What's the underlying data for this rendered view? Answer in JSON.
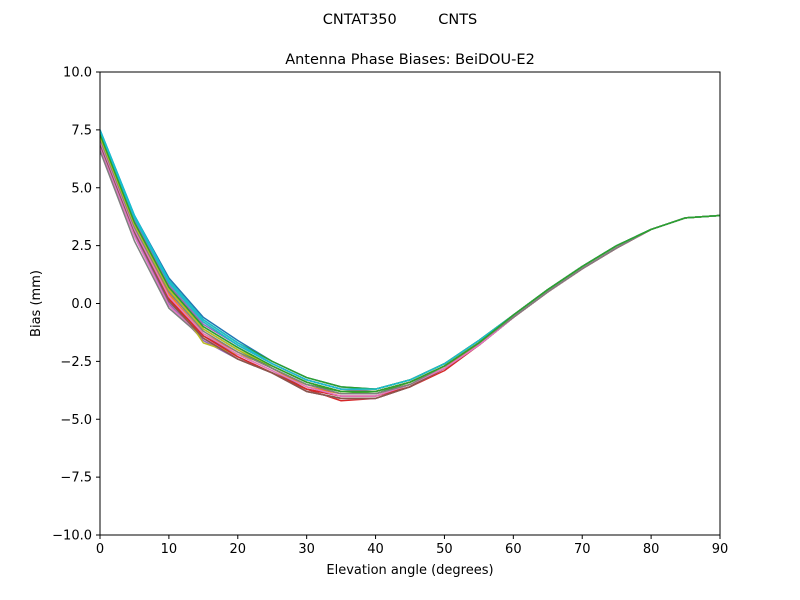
{
  "chart_data": {
    "type": "line",
    "suptitle": "CNTAT350         CNTS",
    "title": "Antenna Phase Biases: BeiDOU-E2",
    "xlabel": "Elevation angle (degrees)",
    "ylabel": "Bias (mm)",
    "xlim": [
      0,
      90
    ],
    "ylim": [
      -10,
      10
    ],
    "xticks": [
      0,
      10,
      20,
      30,
      40,
      50,
      60,
      70,
      80,
      90
    ],
    "yticks": [
      -10.0,
      -7.5,
      -5.0,
      -2.5,
      0.0,
      2.5,
      5.0,
      7.5,
      10.0
    ],
    "xtick_labels": [
      "0",
      "10",
      "20",
      "30",
      "40",
      "50",
      "60",
      "70",
      "80",
      "90"
    ],
    "ytick_labels": [
      "−10.0",
      "−7.5",
      "−5.0",
      "−2.5",
      "0.0",
      "2.5",
      "5.0",
      "7.5",
      "10.0"
    ],
    "grid": false,
    "x": [
      0,
      5,
      10,
      15,
      20,
      25,
      30,
      35,
      40,
      45,
      50,
      55,
      60,
      65,
      70,
      75,
      80,
      85,
      90
    ],
    "series": [
      {
        "color": "#1f77b4",
        "values": [
          7.5,
          3.8,
          1.1,
          -0.6,
          -1.6,
          -2.5,
          -3.2,
          -3.6,
          -3.7,
          -3.3,
          -2.6,
          -1.6,
          -0.5,
          0.6,
          1.6,
          2.5,
          3.2,
          3.7,
          3.8
        ]
      },
      {
        "color": "#ff7f0e",
        "values": [
          7.3,
          3.6,
          0.9,
          -0.8,
          -1.8,
          -2.6,
          -3.3,
          -3.7,
          -3.7,
          -3.3,
          -2.6,
          -1.6,
          -0.5,
          0.6,
          1.6,
          2.5,
          3.2,
          3.7,
          3.8
        ]
      },
      {
        "color": "#2ca02c",
        "values": [
          7.4,
          3.7,
          1.0,
          -0.7,
          -1.7,
          -2.5,
          -3.2,
          -3.6,
          -3.7,
          -3.3,
          -2.6,
          -1.6,
          -0.5,
          0.6,
          1.6,
          2.5,
          3.2,
          3.7,
          3.8
        ]
      },
      {
        "color": "#d62728",
        "values": [
          6.9,
          3.1,
          0.2,
          -1.5,
          -2.3,
          -3.0,
          -3.7,
          -4.2,
          -4.1,
          -3.6,
          -2.9,
          -1.8,
          -0.6,
          0.5,
          1.5,
          2.4,
          3.2,
          3.7,
          3.8
        ]
      },
      {
        "color": "#9467bd",
        "values": [
          6.8,
          3.0,
          0.0,
          -1.6,
          -2.4,
          -3.0,
          -3.8,
          -4.1,
          -4.1,
          -3.6,
          -2.8,
          -1.8,
          -0.6,
          0.5,
          1.5,
          2.4,
          3.2,
          3.7,
          3.8
        ]
      },
      {
        "color": "#8c564b",
        "values": [
          7.0,
          3.2,
          0.3,
          -1.4,
          -2.2,
          -2.9,
          -3.7,
          -4.0,
          -4.0,
          -3.5,
          -2.8,
          -1.8,
          -0.6,
          0.5,
          1.5,
          2.4,
          3.2,
          3.7,
          3.8
        ]
      },
      {
        "color": "#e377c2",
        "values": [
          6.7,
          2.9,
          -0.1,
          -1.5,
          -2.3,
          -3.0,
          -3.8,
          -4.1,
          -4.1,
          -3.6,
          -2.8,
          -1.8,
          -0.6,
          0.5,
          1.5,
          2.4,
          3.2,
          3.7,
          3.8
        ]
      },
      {
        "color": "#7f7f7f",
        "values": [
          6.6,
          2.7,
          -0.2,
          -1.5,
          -2.4,
          -3.0,
          -3.8,
          -4.1,
          -4.1,
          -3.6,
          -2.8,
          -1.8,
          -0.6,
          0.5,
          1.5,
          2.4,
          3.2,
          3.7,
          3.8
        ]
      },
      {
        "color": "#bcbd22",
        "values": [
          7.1,
          3.4,
          0.5,
          -1.7,
          -2.2,
          -2.7,
          -3.4,
          -3.8,
          -3.8,
          -3.4,
          -2.7,
          -1.7,
          -0.5,
          0.6,
          1.6,
          2.5,
          3.2,
          3.7,
          3.8
        ]
      },
      {
        "color": "#17becf",
        "values": [
          7.5,
          3.8,
          1.0,
          -0.7,
          -1.7,
          -2.6,
          -3.3,
          -3.7,
          -3.8,
          -3.4,
          -2.7,
          -1.7,
          -0.5,
          0.6,
          1.6,
          2.5,
          3.2,
          3.7,
          3.8
        ]
      },
      {
        "color": "#1f77b4",
        "values": [
          7.2,
          3.5,
          0.7,
          -1.0,
          -1.9,
          -2.7,
          -3.4,
          -3.8,
          -3.8,
          -3.4,
          -2.7,
          -1.7,
          -0.5,
          0.6,
          1.6,
          2.5,
          3.2,
          3.7,
          3.8
        ]
      },
      {
        "color": "#ff7f0e",
        "values": [
          7.1,
          3.3,
          0.4,
          -1.3,
          -2.1,
          -2.8,
          -3.6,
          -3.9,
          -3.9,
          -3.5,
          -2.8,
          -1.7,
          -0.6,
          0.5,
          1.5,
          2.4,
          3.2,
          3.7,
          3.8
        ]
      },
      {
        "color": "#2ca02c",
        "values": [
          7.2,
          3.4,
          0.6,
          -1.1,
          -2.0,
          -2.8,
          -3.5,
          -3.8,
          -3.9,
          -3.4,
          -2.7,
          -1.7,
          -0.5,
          0.6,
          1.6,
          2.5,
          3.2,
          3.7,
          3.8
        ]
      },
      {
        "color": "#d62728",
        "values": [
          7.0,
          3.2,
          0.2,
          -1.4,
          -2.3,
          -3.0,
          -3.7,
          -4.0,
          -4.0,
          -3.6,
          -2.8,
          -1.8,
          -0.6,
          0.5,
          1.5,
          2.4,
          3.2,
          3.7,
          3.8
        ]
      },
      {
        "color": "#9467bd",
        "values": [
          7.3,
          3.6,
          0.8,
          -0.9,
          -1.8,
          -2.6,
          -3.3,
          -3.7,
          -3.8,
          -3.4,
          -2.7,
          -1.7,
          -0.5,
          0.6,
          1.6,
          2.5,
          3.2,
          3.7,
          3.8
        ]
      },
      {
        "color": "#8c564b",
        "values": [
          6.9,
          3.1,
          0.1,
          -1.5,
          -2.4,
          -3.0,
          -3.8,
          -4.1,
          -4.1,
          -3.6,
          -2.8,
          -1.8,
          -0.6,
          0.5,
          1.5,
          2.4,
          3.2,
          3.7,
          3.8
        ]
      },
      {
        "color": "#e377c2",
        "values": [
          7.0,
          3.2,
          0.3,
          -1.3,
          -2.2,
          -2.9,
          -3.6,
          -4.0,
          -4.0,
          -3.5,
          -2.8,
          -1.8,
          -0.6,
          0.5,
          1.5,
          2.4,
          3.2,
          3.7,
          3.8
        ]
      },
      {
        "color": "#7f7f7f",
        "values": [
          7.1,
          3.3,
          0.5,
          -1.2,
          -2.1,
          -2.8,
          -3.5,
          -3.9,
          -3.9,
          -3.5,
          -2.7,
          -1.7,
          -0.6,
          0.5,
          1.5,
          2.4,
          3.2,
          3.7,
          3.8
        ]
      },
      {
        "color": "#bcbd22",
        "values": [
          7.2,
          3.4,
          0.6,
          -1.1,
          -2.0,
          -2.7,
          -3.4,
          -3.8,
          -3.8,
          -3.4,
          -2.7,
          -1.7,
          -0.5,
          0.6,
          1.6,
          2.5,
          3.2,
          3.7,
          3.8
        ]
      },
      {
        "color": "#17becf",
        "values": [
          7.4,
          3.7,
          0.9,
          -0.8,
          -1.8,
          -2.6,
          -3.3,
          -3.7,
          -3.7,
          -3.3,
          -2.6,
          -1.6,
          -0.5,
          0.6,
          1.6,
          2.5,
          3.2,
          3.7,
          3.8
        ]
      },
      {
        "color": "#2ca02c",
        "values": [
          7.3,
          3.5,
          0.7,
          -1.0,
          -1.9,
          -2.7,
          -3.4,
          -3.8,
          -3.8,
          -3.4,
          -2.7,
          -1.7,
          -0.5,
          0.6,
          1.6,
          2.5,
          3.2,
          3.7,
          3.8
        ]
      }
    ]
  }
}
